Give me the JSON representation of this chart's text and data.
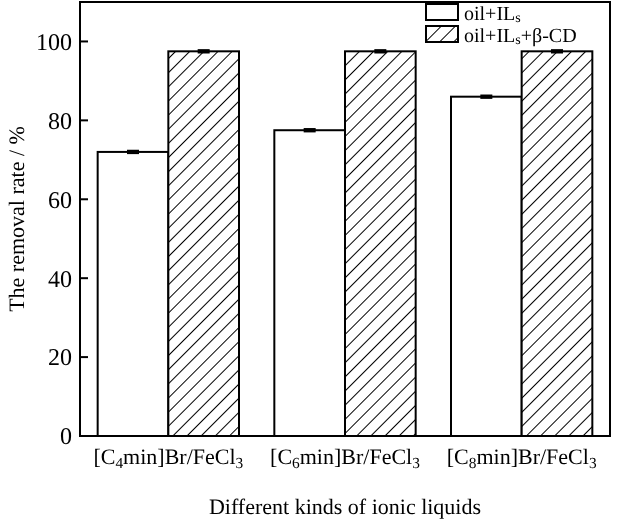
{
  "chart_data": {
    "type": "bar",
    "xlabel": "Different kinds of ionic liquids",
    "ylabel": "The removal rate / %",
    "categories": [
      "[C$_{4}$min]Br/FeCl$_{3}$",
      "[C$_{6}$min]Br/FeCl$_{3}$",
      "[C$_{8}$min]Br/FeCl$_{3}$"
    ],
    "series": [
      {
        "name": "oil+IL$_{s}$",
        "color": "#ffffff",
        "values": [
          72,
          77.5,
          86
        ],
        "errors": [
          0.3,
          0.3,
          0.3
        ]
      },
      {
        "name": "oil+IL$_{s}$+β-CD",
        "color": "#ffffff",
        "values": [
          97.5,
          97.5,
          97.5
        ],
        "errors": [
          0.3,
          0.3,
          0.3
        ]
      }
    ],
    "ylim": [
      0,
      110
    ],
    "yticks": [
      0,
      20,
      40,
      60,
      80,
      100
    ],
    "grid": false,
    "legend": "top right"
  }
}
